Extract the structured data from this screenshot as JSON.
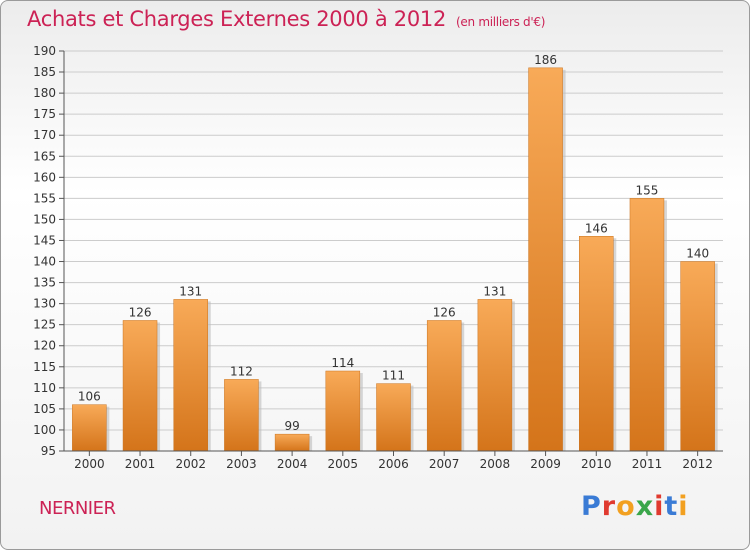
{
  "title": "Achats et Charges Externes 2000 à 2012",
  "unit": "(en milliers d'€)",
  "commune": "NERNIER",
  "logo": "Proxiti",
  "logo_colors": [
    "#3a7bd5",
    "#e03a2f",
    "#f2a020",
    "#3aa64a",
    "#e03a2f",
    "#3a7bd5",
    "#f2a020"
  ],
  "colors": {
    "accent": "#cc2255",
    "bar_light": "#f8aa58",
    "bar_dark": "#d4741a",
    "grid": "#cccccc"
  },
  "chart_data": {
    "type": "bar",
    "categories": [
      "2000",
      "2001",
      "2002",
      "2003",
      "2004",
      "2005",
      "2006",
      "2007",
      "2008",
      "2009",
      "2010",
      "2011",
      "2012"
    ],
    "values": [
      106,
      126,
      131,
      112,
      99,
      114,
      111,
      126,
      131,
      186,
      146,
      155,
      140
    ],
    "ylim": [
      95,
      190
    ],
    "yticks": [
      95,
      100,
      105,
      110,
      115,
      120,
      125,
      130,
      135,
      140,
      145,
      150,
      155,
      160,
      165,
      170,
      175,
      180,
      185,
      190
    ],
    "grid": true,
    "legend": "none"
  }
}
